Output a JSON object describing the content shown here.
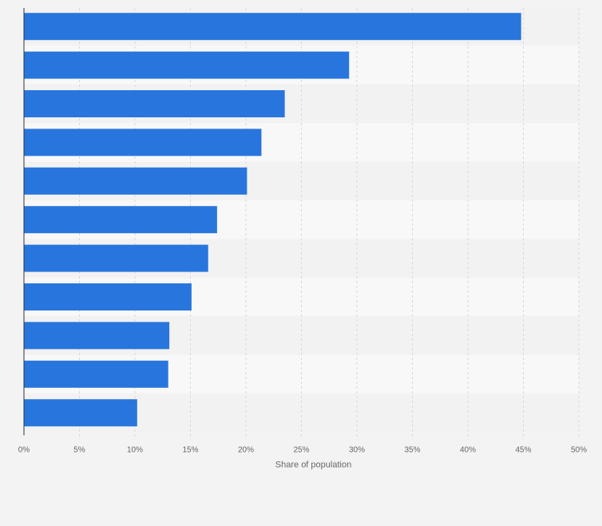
{
  "chart_data": {
    "type": "bar",
    "orientation": "horizontal",
    "title": "",
    "xlabel": "Share of population",
    "ylabel": "",
    "categories": [
      "",
      "",
      "",
      "",
      "",
      "",
      "",
      "",
      "",
      "",
      ""
    ],
    "values": [
      44.8,
      29.3,
      23.5,
      21.4,
      20.1,
      17.4,
      16.6,
      15.1,
      13.1,
      13.0,
      10.2
    ],
    "xlim": [
      0,
      50
    ],
    "x_tick_labels": [
      "0%",
      "5%",
      "10%",
      "15%",
      "20%",
      "25%",
      "30%",
      "35%",
      "40%",
      "45%",
      "50%"
    ],
    "grid": true,
    "legend": "none",
    "colors": {
      "bar": "#2876dd",
      "band_dark": "#f2f2f2",
      "band_light": "#f8f8f8",
      "grid": "#d9d9d9",
      "axis": "#333333"
    }
  }
}
